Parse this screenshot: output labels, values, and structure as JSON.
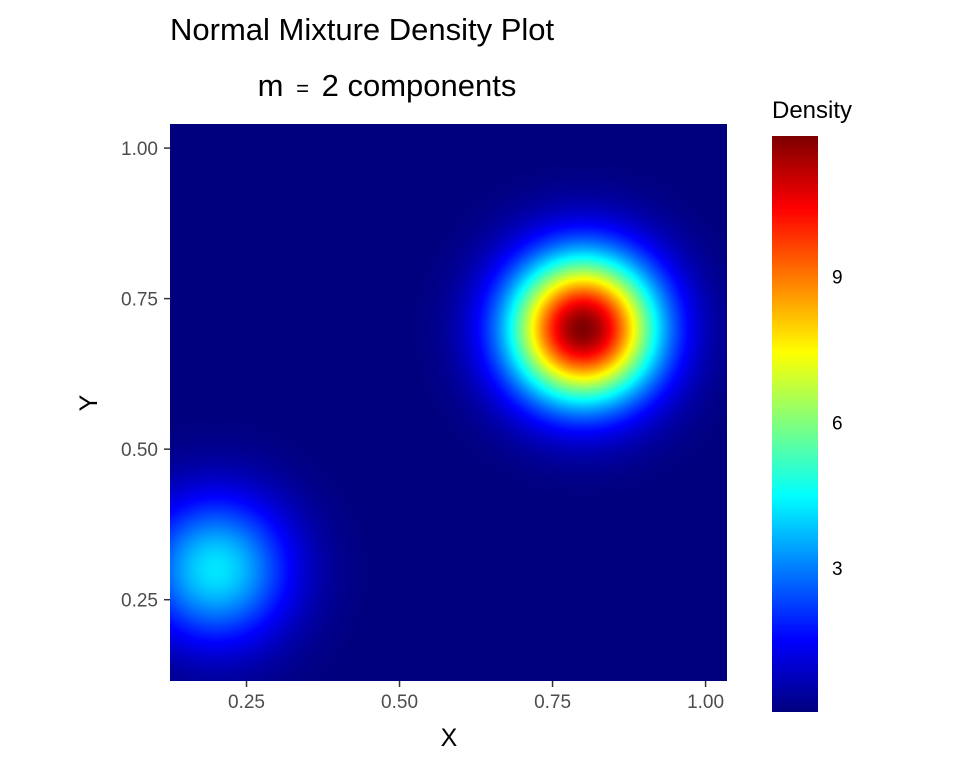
{
  "chart_data": {
    "type": "heatmap",
    "title": "Normal Mixture Density Plot",
    "subtitle_prefix": "m",
    "subtitle_operator": "=",
    "subtitle_rest": "2 components",
    "xlabel": "X",
    "ylabel": "Y",
    "xlim": [
      0.125,
      1.035
    ],
    "ylim": [
      0.115,
      1.04
    ],
    "x_ticks": [
      0.25,
      0.5,
      0.75,
      1.0
    ],
    "y_ticks": [
      0.25,
      0.5,
      0.75,
      1.0
    ],
    "x_tick_labels": [
      "0.25",
      "0.50",
      "0.75",
      "1.00"
    ],
    "y_tick_labels": [
      "0.25",
      "0.50",
      "0.75",
      "1.00"
    ],
    "components": [
      {
        "mean_x": 0.2,
        "mean_y": 0.3,
        "peak_density": 4.2,
        "sd": 0.085
      },
      {
        "mean_x": 0.8,
        "mean_y": 0.7,
        "peak_density": 11.9,
        "sd": 0.085
      }
    ],
    "legend": {
      "title": "Density",
      "placement": "right",
      "range": [
        0.05,
        11.9
      ],
      "breaks": [
        3,
        6,
        9
      ],
      "labels": [
        "3",
        "6",
        "9"
      ]
    },
    "colormap": [
      "#00007F",
      "#0000FF",
      "#007FFF",
      "#00FFFF",
      "#7FFF7F",
      "#FFFF00",
      "#FF7F00",
      "#FF0000",
      "#7F0000"
    ],
    "grid": false
  }
}
